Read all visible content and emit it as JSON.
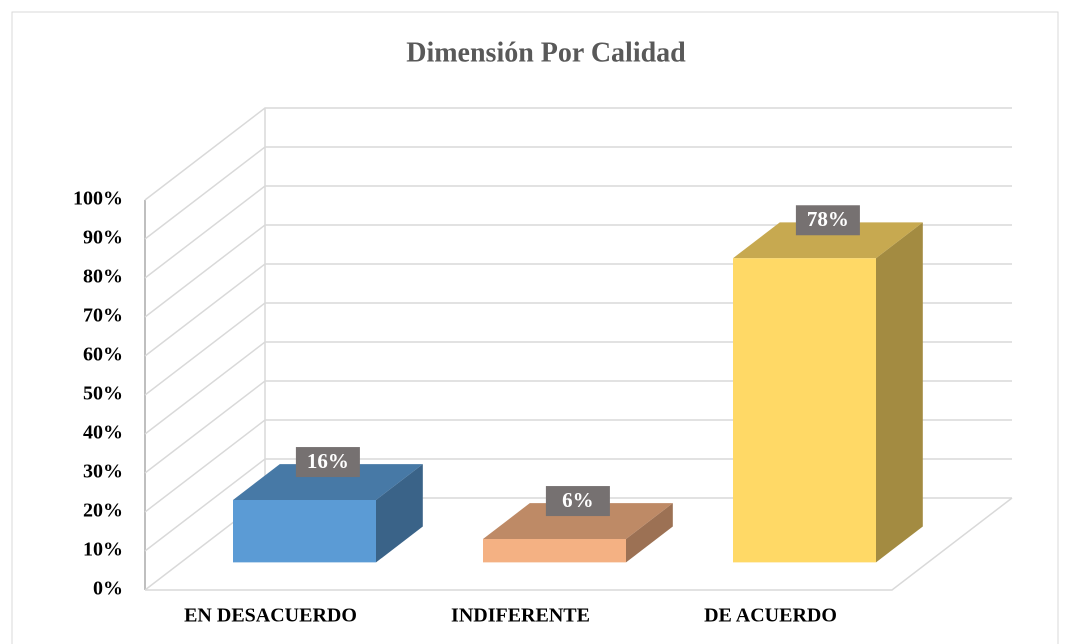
{
  "chart_data": {
    "type": "bar3d",
    "title": "Dimensión Por Calidad",
    "categories": [
      "EN DESACUERDO",
      "INDIFERENTE",
      "DE ACUERDO"
    ],
    "values": [
      16,
      6,
      78
    ],
    "value_labels": [
      "16%",
      "6%",
      "78%"
    ],
    "colors": [
      "#5b9bd5",
      "#f4b183",
      "#ffd966"
    ],
    "ylim": [
      0,
      100
    ],
    "yticks": [
      {
        "value": 0,
        "label": "0%"
      },
      {
        "value": 10,
        "label": "10%"
      },
      {
        "value": 20,
        "label": "20%"
      },
      {
        "value": 30,
        "label": "30%"
      },
      {
        "value": 40,
        "label": "40%"
      },
      {
        "value": 50,
        "label": "50%"
      },
      {
        "value": 60,
        "label": "60%"
      },
      {
        "value": 70,
        "label": "70%"
      },
      {
        "value": 80,
        "label": "80%"
      },
      {
        "value": 90,
        "label": "90%"
      },
      {
        "value": 100,
        "label": "100%"
      }
    ],
    "grid": true
  }
}
